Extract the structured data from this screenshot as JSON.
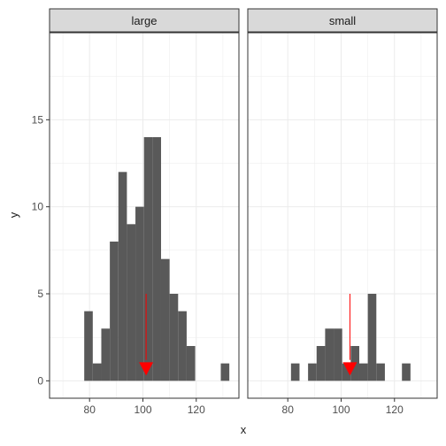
{
  "chart_data": {
    "type": "bar",
    "xlabel": "x",
    "ylabel": "y",
    "xlim": [
      65,
      136
    ],
    "ylim": [
      -1,
      20
    ],
    "x_ticks": [
      80,
      100,
      120
    ],
    "y_ticks": [
      0,
      5,
      10,
      15
    ],
    "bin_width": 3.2,
    "grid": true,
    "colors": {
      "bar": "#595959",
      "marker": "#ff0000",
      "strip_bg": "#d9d9d9",
      "grid": "#ebebeb"
    },
    "facets": [
      {
        "label": "large",
        "bin_starts": [
          78,
          81.2,
          84.4,
          87.6,
          90.8,
          94,
          97.2,
          100.4,
          103.6,
          106.8,
          110,
          113.2,
          116.4,
          119.6,
          122.8,
          126,
          129.2
        ],
        "counts": [
          4,
          1,
          3,
          8,
          12,
          9,
          10,
          14,
          14,
          7,
          5,
          4,
          2,
          0,
          0,
          0,
          1
        ],
        "marker": {
          "x": 101.2,
          "y_top": 5,
          "y_tip": 0.3
        }
      },
      {
        "label": "small",
        "bin_starts": [
          81.2,
          84.4,
          87.6,
          90.8,
          94,
          97.2,
          100.4,
          103.6,
          106.8,
          110,
          113.2,
          116.4,
          119.6,
          122.8
        ],
        "counts": [
          1,
          0,
          1,
          2,
          3,
          3,
          1,
          2,
          1,
          5,
          1,
          0,
          0,
          1
        ],
        "marker": {
          "x": 103.3,
          "y_top": 5,
          "y_tip": 0.3
        }
      }
    ]
  }
}
